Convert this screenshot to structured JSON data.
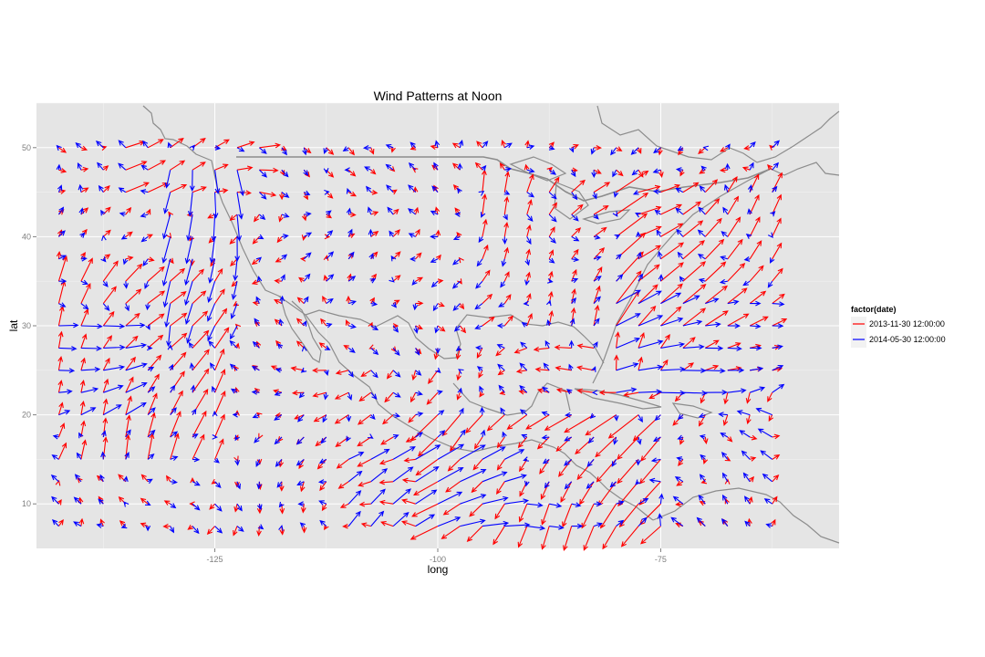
{
  "chart_data": {
    "type": "quiver",
    "title": "Wind Patterns at Noon",
    "xlabel": "long",
    "ylabel": "lat",
    "xlim": [
      -145,
      -55
    ],
    "ylim": [
      5,
      55
    ],
    "x_ticks": [
      -125,
      -100,
      -75
    ],
    "y_ticks": [
      10,
      20,
      30,
      40,
      50
    ],
    "x_tick_labels": [
      "-125",
      "-100",
      "-75"
    ],
    "y_tick_labels": [
      "10",
      "20",
      "30",
      "40",
      "50"
    ],
    "grid": true,
    "legend_position": "right",
    "legend_title": "factor(date)",
    "grid_long": [
      -142.5,
      -140,
      -137.5,
      -135,
      -132.5,
      -130,
      -127.5,
      -125,
      -122.5,
      -120,
      -117.5,
      -115,
      -112.5,
      -110,
      -107.5,
      -105,
      -102.5,
      -100,
      -97.5,
      -95,
      -92.5,
      -90,
      -87.5,
      -85,
      -82.5,
      -80,
      -77.5,
      -75,
      -72.5,
      -70,
      -67.5,
      -65,
      -62.5
    ],
    "grid_lat": [
      7.5,
      10,
      12.5,
      15,
      17.5,
      20,
      22.5,
      25,
      27.5,
      30,
      32.5,
      35,
      37.5,
      40,
      42.5,
      45,
      47.5,
      50
    ],
    "series": [
      {
        "name": "2013-11-30 12:00:00",
        "color": "#ff0000",
        "wind_field_regions": [
          {
            "long": [
              -145,
              -125
            ],
            "lat": [
              15,
              35
            ],
            "u": 1.2,
            "v": 2.4
          },
          {
            "long": [
              -135,
              -120
            ],
            "lat": [
              43,
              51
            ],
            "u": 2.5,
            "v": 0.3
          },
          {
            "long": [
              -95,
              -80
            ],
            "lat": [
              28,
              45
            ],
            "u": 1.2,
            "v": 2.0
          },
          {
            "long": [
              -80,
              -62
            ],
            "lat": [
              25,
              45
            ],
            "u": 2.0,
            "v": 1.6
          },
          {
            "long": [
              -100,
              -75
            ],
            "lat": [
              7,
              22
            ],
            "u": -1.8,
            "v": -2.2
          },
          {
            "long": [
              -125,
              -100
            ],
            "lat": [
              7,
              25
            ],
            "u": -0.8,
            "v": -0.3
          },
          {
            "long": [
              -100,
              -62
            ],
            "lat": [
              20,
              28
            ],
            "u": -1.2,
            "v": -0.5
          }
        ]
      },
      {
        "name": "2014-05-30 12:00:00",
        "color": "#0000ff",
        "wind_field_regions": [
          {
            "long": [
              -145,
              -135
            ],
            "lat": [
              20,
              32
            ],
            "u": 1.8,
            "v": 0.8
          },
          {
            "long": [
              -132,
              -122
            ],
            "lat": [
              30,
              48
            ],
            "u": 0.0,
            "v": -2.5
          },
          {
            "long": [
              -112,
              -92
            ],
            "lat": [
              7,
              17
            ],
            "u": 2.4,
            "v": 1.0
          },
          {
            "long": [
              -90,
              -75
            ],
            "lat": [
              7,
              12
            ],
            "u": 1.8,
            "v": 0.6
          },
          {
            "long": [
              -80,
              -62
            ],
            "lat": [
              22,
              34
            ],
            "u": 2.2,
            "v": 0.8
          },
          {
            "long": [
              -75,
              -60
            ],
            "lat": [
              7,
              20
            ],
            "u": -1.5,
            "v": 0.2
          }
        ]
      }
    ],
    "basemap": "North America country and state outlines"
  }
}
